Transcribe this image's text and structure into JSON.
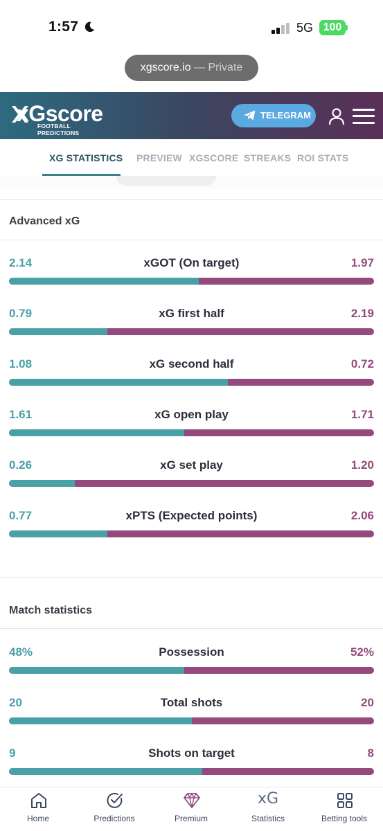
{
  "status_bar": {
    "time": "1:57",
    "network": "5G",
    "battery": "100"
  },
  "browser": {
    "domain": "xgscore.io",
    "mode": " — Private"
  },
  "header": {
    "logo_text": "xGscore",
    "logo_subtitle": "FOOTBALL PREDICTIONS",
    "telegram_label": "TELEGRAM"
  },
  "tabs": [
    {
      "label": "XG STATISTICS",
      "active": true
    },
    {
      "label": "PREVIEW",
      "active": false
    },
    {
      "label": "XGSCORE",
      "active": false
    },
    {
      "label": "STREAKS",
      "active": false
    },
    {
      "label": "ROI STATS",
      "active": false
    }
  ],
  "advanced_xg": {
    "title": "Advanced xG",
    "rows": [
      {
        "label": "xGOT (On target)",
        "home": "2.14",
        "away": "1.97",
        "home_share": 0.52
      },
      {
        "label": "xG first half",
        "home": "0.79",
        "away": "2.19",
        "home_share": 0.27
      },
      {
        "label": "xG second half",
        "home": "1.08",
        "away": "0.72",
        "home_share": 0.6
      },
      {
        "label": "xG open play",
        "home": "1.61",
        "away": "1.71",
        "home_share": 0.48
      },
      {
        "label": "xG set play",
        "home": "0.26",
        "away": "1.20",
        "home_share": 0.18
      },
      {
        "label": "xPTS (Expected points)",
        "home": "0.77",
        "away": "2.06",
        "home_share": 0.27
      }
    ]
  },
  "match_statistics": {
    "title": "Match statistics",
    "rows": [
      {
        "label": "Possession",
        "home": "48%",
        "away": "52%",
        "home_share": 0.48
      },
      {
        "label": "Total shots",
        "home": "20",
        "away": "20",
        "home_share": 0.5
      },
      {
        "label": "Shots on target",
        "home": "9",
        "away": "8",
        "home_share": 0.53
      }
    ]
  },
  "colors": {
    "home": "#4aa0a7",
    "away": "#944a7c",
    "header_start": "#2d6a80",
    "header_end": "#5a2f57",
    "telegram": "#5aa9e0"
  },
  "bottom_nav": [
    {
      "label": "Home",
      "icon": "home-icon"
    },
    {
      "label": "Predictions",
      "icon": "check-circle-icon"
    },
    {
      "label": "Premium",
      "icon": "diamond-icon"
    },
    {
      "label": "Statistics",
      "icon": "xg-icon",
      "text": "xG"
    },
    {
      "label": "Betting tools",
      "icon": "grid-icon"
    }
  ]
}
